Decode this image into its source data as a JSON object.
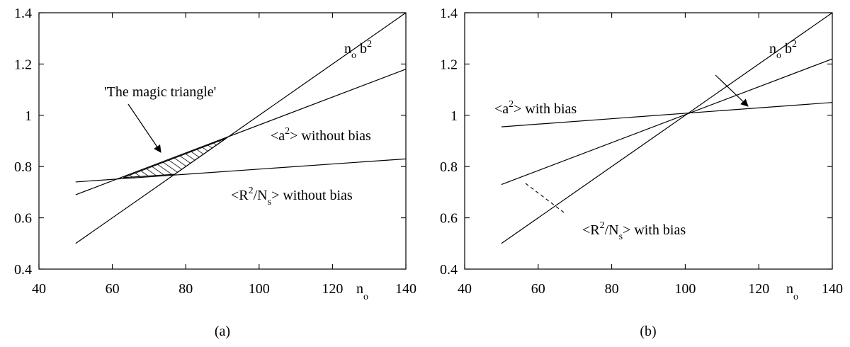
{
  "chart_data": [
    {
      "type": "line",
      "caption": "(a)",
      "xlabel": "n",
      "xlabel_sub": "o",
      "xlim": [
        40,
        140
      ],
      "ylim": [
        0.4,
        1.4
      ],
      "xticks": [
        40,
        60,
        80,
        100,
        120,
        140
      ],
      "yticks": [
        0.4,
        0.6,
        0.8,
        1,
        1.2,
        1.4
      ],
      "xtick_labels": [
        "40",
        "60",
        "80",
        "100",
        "120",
        "140"
      ],
      "ytick_labels": [
        "0.4",
        "0.6",
        "0.8",
        "1",
        "1.2",
        "1.4"
      ],
      "grid": false,
      "series": [
        {
          "points": [
            [
              50,
              0.5
            ],
            [
              140,
              1.4
            ]
          ]
        },
        {
          "points": [
            [
              50,
              0.69
            ],
            [
              140,
              1.18
            ]
          ]
        },
        {
          "points": [
            [
              50,
              0.74
            ],
            [
              140,
              0.83
            ]
          ]
        }
      ],
      "series_labels": [
        {
          "pre": "n",
          "sub": "o",
          "mid": " b",
          "sup": "2",
          "post": ""
        },
        {
          "pre": "<a",
          "sup": "2",
          "post": "> without bias"
        },
        {
          "pre": "<R",
          "sup": "2",
          "mid": "/N",
          "sub": "s",
          "post": ">  without bias"
        }
      ],
      "annotation": "'The magic triangle'",
      "shaded_region": [
        [
          63,
          0.757
        ],
        [
          77,
          0.77
        ],
        [
          91,
          0.91
        ]
      ]
    },
    {
      "type": "line",
      "caption": "(b)",
      "xlabel": "n",
      "xlabel_sub": "o",
      "xlim": [
        40,
        140
      ],
      "ylim": [
        0.4,
        1.4
      ],
      "xticks": [
        40,
        60,
        80,
        100,
        120,
        140
      ],
      "yticks": [
        0.4,
        0.6,
        0.8,
        1,
        1.2,
        1.4
      ],
      "xtick_labels": [
        "40",
        "60",
        "80",
        "100",
        "120",
        "140"
      ],
      "ytick_labels": [
        "0.4",
        "0.6",
        "0.8",
        "1",
        "1.2",
        "1.4"
      ],
      "grid": false,
      "series": [
        {
          "points": [
            [
              50,
              0.5
            ],
            [
              140,
              1.4
            ]
          ]
        },
        {
          "points": [
            [
              50,
              0.73
            ],
            [
              140,
              1.22
            ]
          ]
        },
        {
          "points": [
            [
              50,
              0.955
            ],
            [
              140,
              1.05
            ]
          ]
        }
      ],
      "series_labels": [
        {
          "pre": "n",
          "sub": "o",
          "mid": " b",
          "sup": "2",
          "post": ""
        },
        {
          "pre": "<a",
          "sup": "2",
          "post": "> with bias"
        },
        {
          "pre": "<R",
          "sup": "2",
          "mid": "/N",
          "sub": "s",
          "post": ">  with bias"
        }
      ]
    }
  ]
}
